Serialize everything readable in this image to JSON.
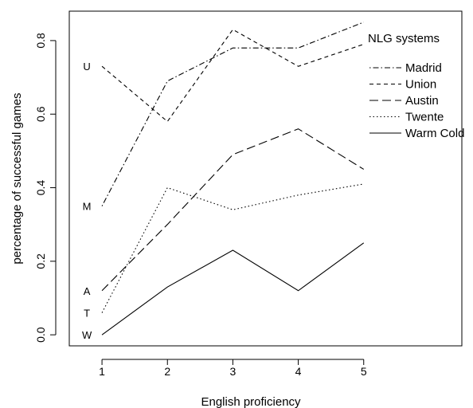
{
  "chart_data": {
    "type": "line",
    "title": "",
    "xlabel": "English proficiency",
    "ylabel": "percentage of successful games",
    "x": [
      1,
      2,
      3,
      4,
      5
    ],
    "xlim": [
      0.5,
      6.5
    ],
    "ylim": [
      -0.03,
      0.88
    ],
    "x_ticks": [
      "1",
      "2",
      "3",
      "4",
      "5"
    ],
    "y_ticks": [
      "0.0",
      "0.2",
      "0.4",
      "0.6",
      "0.8"
    ],
    "grid": false,
    "legend_title": "NLG systems",
    "legend_position": "top-right",
    "series": [
      {
        "name": "Madrid",
        "marker": "M",
        "dash": "dotdash",
        "values": [
          0.35,
          0.69,
          0.78,
          0.78,
          0.85
        ]
      },
      {
        "name": "Union",
        "marker": "U",
        "dash": "dashed",
        "values": [
          0.73,
          0.58,
          0.83,
          0.73,
          0.79
        ]
      },
      {
        "name": "Austin",
        "marker": "A",
        "dash": "longdash",
        "values": [
          0.12,
          0.3,
          0.49,
          0.56,
          0.45
        ]
      },
      {
        "name": "Twente",
        "marker": "T",
        "dash": "dotted",
        "values": [
          0.06,
          0.4,
          0.34,
          0.38,
          0.41
        ]
      },
      {
        "name": "Warm Cold",
        "marker": "W",
        "dash": "solid",
        "values": [
          0.0,
          0.13,
          0.23,
          0.12,
          0.25
        ]
      }
    ]
  }
}
